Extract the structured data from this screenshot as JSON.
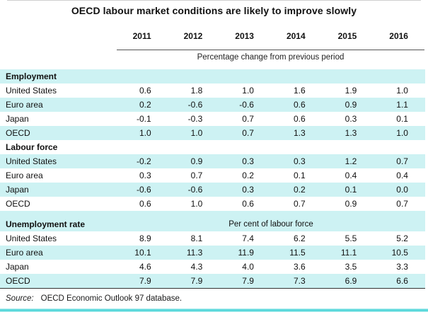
{
  "title": "OECD labour market conditions are likely to improve slowly",
  "columns": [
    "2011",
    "2012",
    "2013",
    "2014",
    "2015",
    "2016"
  ],
  "header_unit_note": "Percentage change from previous period",
  "sections": [
    {
      "header": "Employment",
      "unit": "",
      "spacer_before": false,
      "rows": [
        {
          "label": "United States",
          "values": [
            "0.6",
            "1.8",
            "1.0",
            "1.6",
            "1.9",
            "1.0"
          ]
        },
        {
          "label": "Euro area",
          "values": [
            "0.2",
            "-0.6",
            "-0.6",
            "0.6",
            "0.9",
            "1.1"
          ]
        },
        {
          "label": "Japan",
          "values": [
            "-0.1",
            "-0.3",
            "0.7",
            "0.6",
            "0.3",
            "0.1"
          ]
        },
        {
          "label": "OECD",
          "values": [
            "1.0",
            "1.0",
            "0.7",
            "1.3",
            "1.3",
            "1.0"
          ]
        }
      ]
    },
    {
      "header": "Labour force",
      "unit": "",
      "spacer_before": false,
      "rows": [
        {
          "label": "United States",
          "values": [
            "-0.2",
            "0.9",
            "0.3",
            "0.3",
            "1.2",
            "0.7"
          ]
        },
        {
          "label": "Euro area",
          "values": [
            "0.3",
            "0.7",
            "0.2",
            "0.1",
            "0.4",
            "0.4"
          ]
        },
        {
          "label": "Japan",
          "values": [
            "-0.6",
            "-0.6",
            "0.3",
            "0.2",
            "0.1",
            "0.0"
          ]
        },
        {
          "label": "OECD",
          "values": [
            "0.6",
            "1.0",
            "0.6",
            "0.7",
            "0.9",
            "0.7"
          ]
        }
      ]
    },
    {
      "header": "Unemployment rate",
      "unit": "Per cent of labour force",
      "spacer_before": true,
      "rows": [
        {
          "label": "United States",
          "values": [
            "8.9",
            "8.1",
            "7.4",
            "6.2",
            "5.5",
            "5.2"
          ]
        },
        {
          "label": "Euro area",
          "values": [
            "10.1",
            "11.3",
            "11.9",
            "11.5",
            "11.1",
            "10.5"
          ]
        },
        {
          "label": "Japan",
          "values": [
            "4.6",
            "4.3",
            "4.0",
            "3.6",
            "3.5",
            "3.3"
          ]
        },
        {
          "label": "OECD",
          "values": [
            "7.9",
            "7.9",
            "7.9",
            "7.3",
            "6.9",
            "6.6"
          ]
        }
      ]
    }
  ],
  "source": {
    "prefix": "Source:",
    "text": "OECD Economic Outlook 97 database."
  },
  "colors": {
    "row_highlight": "#cdf2f3",
    "accent_line": "#56d7da"
  }
}
